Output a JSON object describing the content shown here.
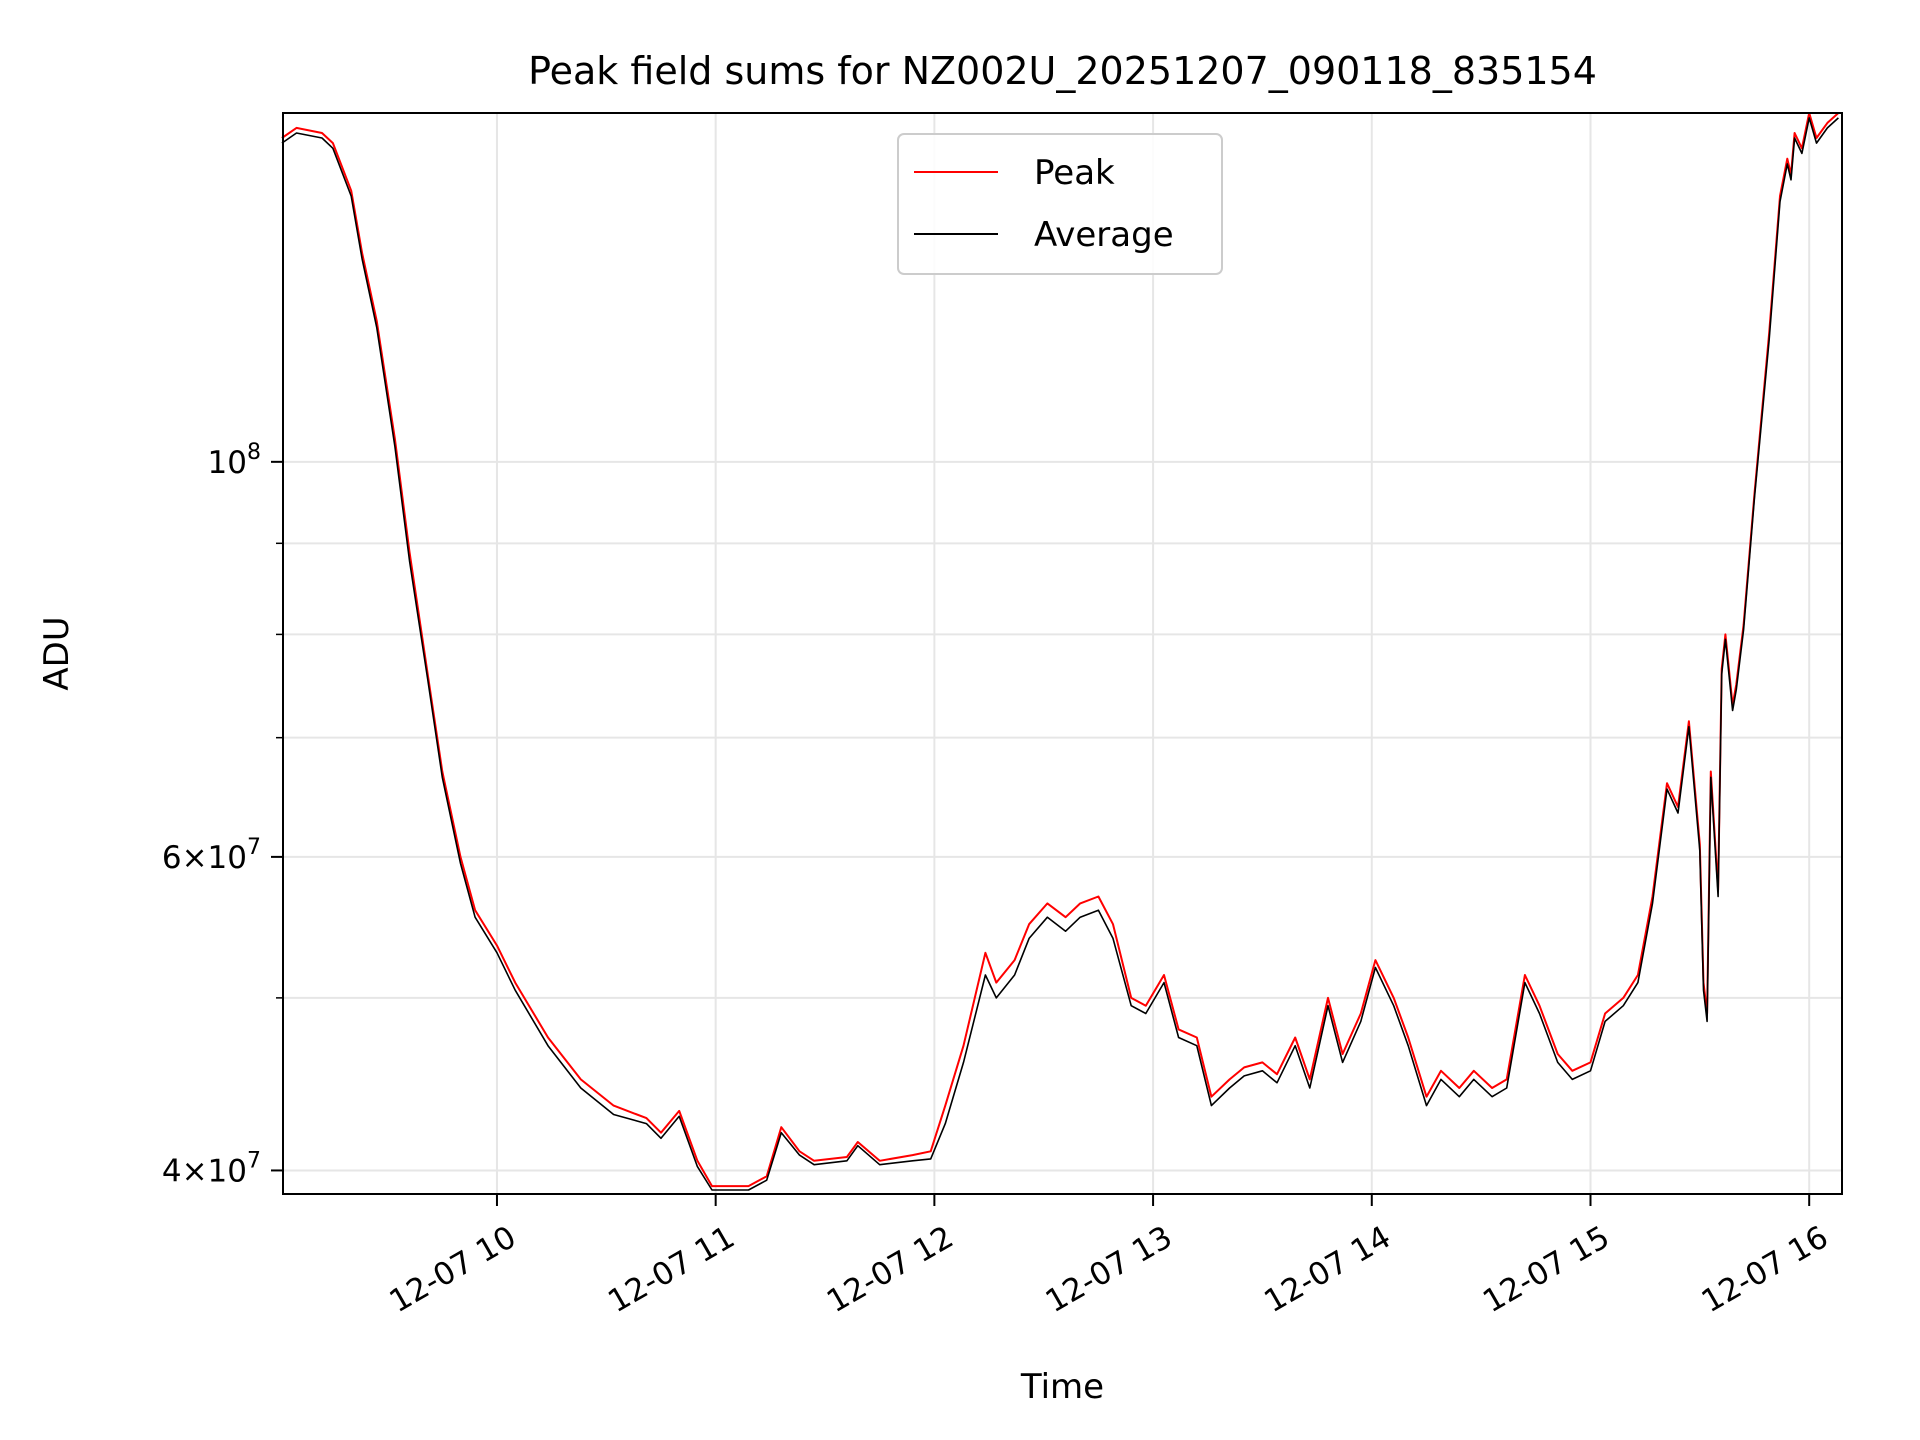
{
  "chart_data": {
    "type": "line",
    "title": "Peak field sums for NZ002U_20251207_090118_835154",
    "xlabel": "Time",
    "ylabel": "ADU",
    "y_scale": "log",
    "ylim": [
      38800000,
      157000000
    ],
    "xlim": [
      "2025-12-07 09:01:18",
      "2025-12-07 16:09:00"
    ],
    "grid": true,
    "legend_position": "top-center",
    "x_ticks": [
      {
        "label": "12-07 10",
        "time": "2025-12-07 10:00"
      },
      {
        "label": "12-07 11",
        "time": "2025-12-07 11:00"
      },
      {
        "label": "12-07 12",
        "time": "2025-12-07 12:00"
      },
      {
        "label": "12-07 13",
        "time": "2025-12-07 13:00"
      },
      {
        "label": "12-07 14",
        "time": "2025-12-07 14:00"
      },
      {
        "label": "12-07 15",
        "time": "2025-12-07 15:00"
      },
      {
        "label": "12-07 16",
        "time": "2025-12-07 16:00"
      }
    ],
    "y_ticks": [
      {
        "value": 40000000,
        "base": "4",
        "exp": "7"
      },
      {
        "value": 60000000,
        "base": "6",
        "exp": "7"
      },
      {
        "value": 100000000,
        "base": "",
        "exp": "8"
      }
    ],
    "y_minor_ticks": [
      50000000,
      70000000,
      80000000,
      90000000
    ],
    "series": [
      {
        "name": "Peak",
        "color": "#ff0000",
        "time": [
          "2025-12-07 09:01",
          "2025-12-07 09:05",
          "2025-12-07 09:12",
          "2025-12-07 09:15",
          "2025-12-07 09:20",
          "2025-12-07 09:23",
          "2025-12-07 09:27",
          "2025-12-07 09:32",
          "2025-12-07 09:36",
          "2025-12-07 09:41",
          "2025-12-07 09:45",
          "2025-12-07 09:50",
          "2025-12-07 09:54",
          "2025-12-07 10:00",
          "2025-12-07 10:05",
          "2025-12-07 10:14",
          "2025-12-07 10:23",
          "2025-12-07 10:32",
          "2025-12-07 10:41",
          "2025-12-07 10:45",
          "2025-12-07 10:50",
          "2025-12-07 10:55",
          "2025-12-07 10:59",
          "2025-12-07 11:09",
          "2025-12-07 11:14",
          "2025-12-07 11:18",
          "2025-12-07 11:23",
          "2025-12-07 11:27",
          "2025-12-07 11:36",
          "2025-12-07 11:39",
          "2025-12-07 11:45",
          "2025-12-07 11:54",
          "2025-12-07 11:59",
          "2025-12-07 12:03",
          "2025-12-07 12:08",
          "2025-12-07 12:14",
          "2025-12-07 12:17",
          "2025-12-07 12:22",
          "2025-12-07 12:26",
          "2025-12-07 12:31",
          "2025-12-07 12:36",
          "2025-12-07 12:40",
          "2025-12-07 12:45",
          "2025-12-07 12:49",
          "2025-12-07 12:54",
          "2025-12-07 12:58",
          "2025-12-07 13:03",
          "2025-12-07 13:07",
          "2025-12-07 13:12",
          "2025-12-07 13:16",
          "2025-12-07 13:21",
          "2025-12-07 13:25",
          "2025-12-07 13:30",
          "2025-12-07 13:34",
          "2025-12-07 13:39",
          "2025-12-07 13:43",
          "2025-12-07 13:48",
          "2025-12-07 13:52",
          "2025-12-07 13:57",
          "2025-12-07 14:01",
          "2025-12-07 14:06",
          "2025-12-07 14:10",
          "2025-12-07 14:15",
          "2025-12-07 14:19",
          "2025-12-07 14:24",
          "2025-12-07 14:28",
          "2025-12-07 14:33",
          "2025-12-07 14:37",
          "2025-12-07 14:42",
          "2025-12-07 14:46",
          "2025-12-07 14:51",
          "2025-12-07 14:55",
          "2025-12-07 15:00",
          "2025-12-07 15:04",
          "2025-12-07 15:09",
          "2025-12-07 15:13",
          "2025-12-07 15:17",
          "2025-12-07 15:21",
          "2025-12-07 15:24",
          "2025-12-07 15:27",
          "2025-12-07 15:30",
          "2025-12-07 15:31",
          "2025-12-07 15:32",
          "2025-12-07 15:33",
          "2025-12-07 15:35",
          "2025-12-07 15:36",
          "2025-12-07 15:37",
          "2025-12-07 15:39",
          "2025-12-07 15:40",
          "2025-12-07 15:42",
          "2025-12-07 15:45",
          "2025-12-07 15:49",
          "2025-12-07 15:52",
          "2025-12-07 15:54",
          "2025-12-07 15:55",
          "2025-12-07 15:56",
          "2025-12-07 15:58",
          "2025-12-07 16:00",
          "2025-12-07 16:02",
          "2025-12-07 16:05",
          "2025-12-07 16:08"
        ],
        "values": [
          152000000,
          154000000,
          153000000,
          151000000,
          142000000,
          131000000,
          120000000,
          103000000,
          89000000,
          76000000,
          67000000,
          60000000,
          56000000,
          53500000,
          51000000,
          47500000,
          45000000,
          43500000,
          42800000,
          42000000,
          43200000,
          40500000,
          39200000,
          39200000,
          39700000,
          42300000,
          41000000,
          40500000,
          40700000,
          41500000,
          40500000,
          40800000,
          41000000,
          43500000,
          47000000,
          53000000,
          51000000,
          52500000,
          55000000,
          56500000,
          55500000,
          56500000,
          57000000,
          55000000,
          50000000,
          49500000,
          51500000,
          48000000,
          47500000,
          44000000,
          45000000,
          45700000,
          46000000,
          45300000,
          47500000,
          45000000,
          50000000,
          46500000,
          49000000,
          52500000,
          50000000,
          47500000,
          44000000,
          45500000,
          44500000,
          45500000,
          44500000,
          45000000,
          51500000,
          49500000,
          46500000,
          45500000,
          46000000,
          49000000,
          50000000,
          51500000,
          57000000,
          66000000,
          64000000,
          71500000,
          61000000,
          51000000,
          49000000,
          67000000,
          57500000,
          76500000,
          80000000,
          73000000,
          75000000,
          81000000,
          96000000,
          118000000,
          141000000,
          148000000,
          145000000,
          153000000,
          150000000,
          157000000,
          152000000,
          155000000,
          157000000
        ]
      },
      {
        "name": "Average",
        "color": "#000000",
        "time": [
          "2025-12-07 09:01",
          "2025-12-07 09:05",
          "2025-12-07 09:12",
          "2025-12-07 09:15",
          "2025-12-07 09:20",
          "2025-12-07 09:23",
          "2025-12-07 09:27",
          "2025-12-07 09:32",
          "2025-12-07 09:36",
          "2025-12-07 09:41",
          "2025-12-07 09:45",
          "2025-12-07 09:50",
          "2025-12-07 09:54",
          "2025-12-07 10:00",
          "2025-12-07 10:05",
          "2025-12-07 10:14",
          "2025-12-07 10:23",
          "2025-12-07 10:32",
          "2025-12-07 10:41",
          "2025-12-07 10:45",
          "2025-12-07 10:50",
          "2025-12-07 10:55",
          "2025-12-07 10:59",
          "2025-12-07 11:09",
          "2025-12-07 11:14",
          "2025-12-07 11:18",
          "2025-12-07 11:23",
          "2025-12-07 11:27",
          "2025-12-07 11:36",
          "2025-12-07 11:39",
          "2025-12-07 11:45",
          "2025-12-07 11:54",
          "2025-12-07 11:59",
          "2025-12-07 12:03",
          "2025-12-07 12:08",
          "2025-12-07 12:14",
          "2025-12-07 12:17",
          "2025-12-07 12:22",
          "2025-12-07 12:26",
          "2025-12-07 12:31",
          "2025-12-07 12:36",
          "2025-12-07 12:40",
          "2025-12-07 12:45",
          "2025-12-07 12:49",
          "2025-12-07 12:54",
          "2025-12-07 12:58",
          "2025-12-07 13:03",
          "2025-12-07 13:07",
          "2025-12-07 13:12",
          "2025-12-07 13:16",
          "2025-12-07 13:21",
          "2025-12-07 13:25",
          "2025-12-07 13:30",
          "2025-12-07 13:34",
          "2025-12-07 13:39",
          "2025-12-07 13:43",
          "2025-12-07 13:48",
          "2025-12-07 13:52",
          "2025-12-07 13:57",
          "2025-12-07 14:01",
          "2025-12-07 14:06",
          "2025-12-07 14:10",
          "2025-12-07 14:15",
          "2025-12-07 14:19",
          "2025-12-07 14:24",
          "2025-12-07 14:28",
          "2025-12-07 14:33",
          "2025-12-07 14:37",
          "2025-12-07 14:42",
          "2025-12-07 14:46",
          "2025-12-07 14:51",
          "2025-12-07 14:55",
          "2025-12-07 15:00",
          "2025-12-07 15:04",
          "2025-12-07 15:09",
          "2025-12-07 15:13",
          "2025-12-07 15:17",
          "2025-12-07 15:21",
          "2025-12-07 15:24",
          "2025-12-07 15:27",
          "2025-12-07 15:30",
          "2025-12-07 15:31",
          "2025-12-07 15:32",
          "2025-12-07 15:33",
          "2025-12-07 15:35",
          "2025-12-07 15:36",
          "2025-12-07 15:37",
          "2025-12-07 15:39",
          "2025-12-07 15:40",
          "2025-12-07 15:42",
          "2025-12-07 15:45",
          "2025-12-07 15:49",
          "2025-12-07 15:52",
          "2025-12-07 15:54",
          "2025-12-07 15:55",
          "2025-12-07 15:56",
          "2025-12-07 15:58",
          "2025-12-07 16:00",
          "2025-12-07 16:02",
          "2025-12-07 16:05",
          "2025-12-07 16:08"
        ],
        "values": [
          151000000,
          153000000,
          152000000,
          150000000,
          141000000,
          130000000,
          119000000,
          102000000,
          88000000,
          75500000,
          66500000,
          59500000,
          55500000,
          53000000,
          50500000,
          47000000,
          44500000,
          43000000,
          42500000,
          41700000,
          42900000,
          40200000,
          39000000,
          39000000,
          39500000,
          42000000,
          40800000,
          40300000,
          40500000,
          41300000,
          40300000,
          40500000,
          40600000,
          42500000,
          46000000,
          51500000,
          50000000,
          51500000,
          54000000,
          55500000,
          54500000,
          55500000,
          56000000,
          54000000,
          49500000,
          49000000,
          51000000,
          47500000,
          47000000,
          43500000,
          44500000,
          45200000,
          45500000,
          44800000,
          47000000,
          44500000,
          49500000,
          46000000,
          48500000,
          52000000,
          49500000,
          47000000,
          43500000,
          45000000,
          44000000,
          45000000,
          44000000,
          44500000,
          51000000,
          49000000,
          46000000,
          45000000,
          45500000,
          48500000,
          49500000,
          51000000,
          56500000,
          65500000,
          63500000,
          71000000,
          60500000,
          50500000,
          48500000,
          66500000,
          57000000,
          76000000,
          79500000,
          72500000,
          74500000,
          80500000,
          95500000,
          117000000,
          140000000,
          147000000,
          144000000,
          152000000,
          149000000,
          156000000,
          151000000,
          154000000,
          156000000
        ]
      }
    ]
  }
}
